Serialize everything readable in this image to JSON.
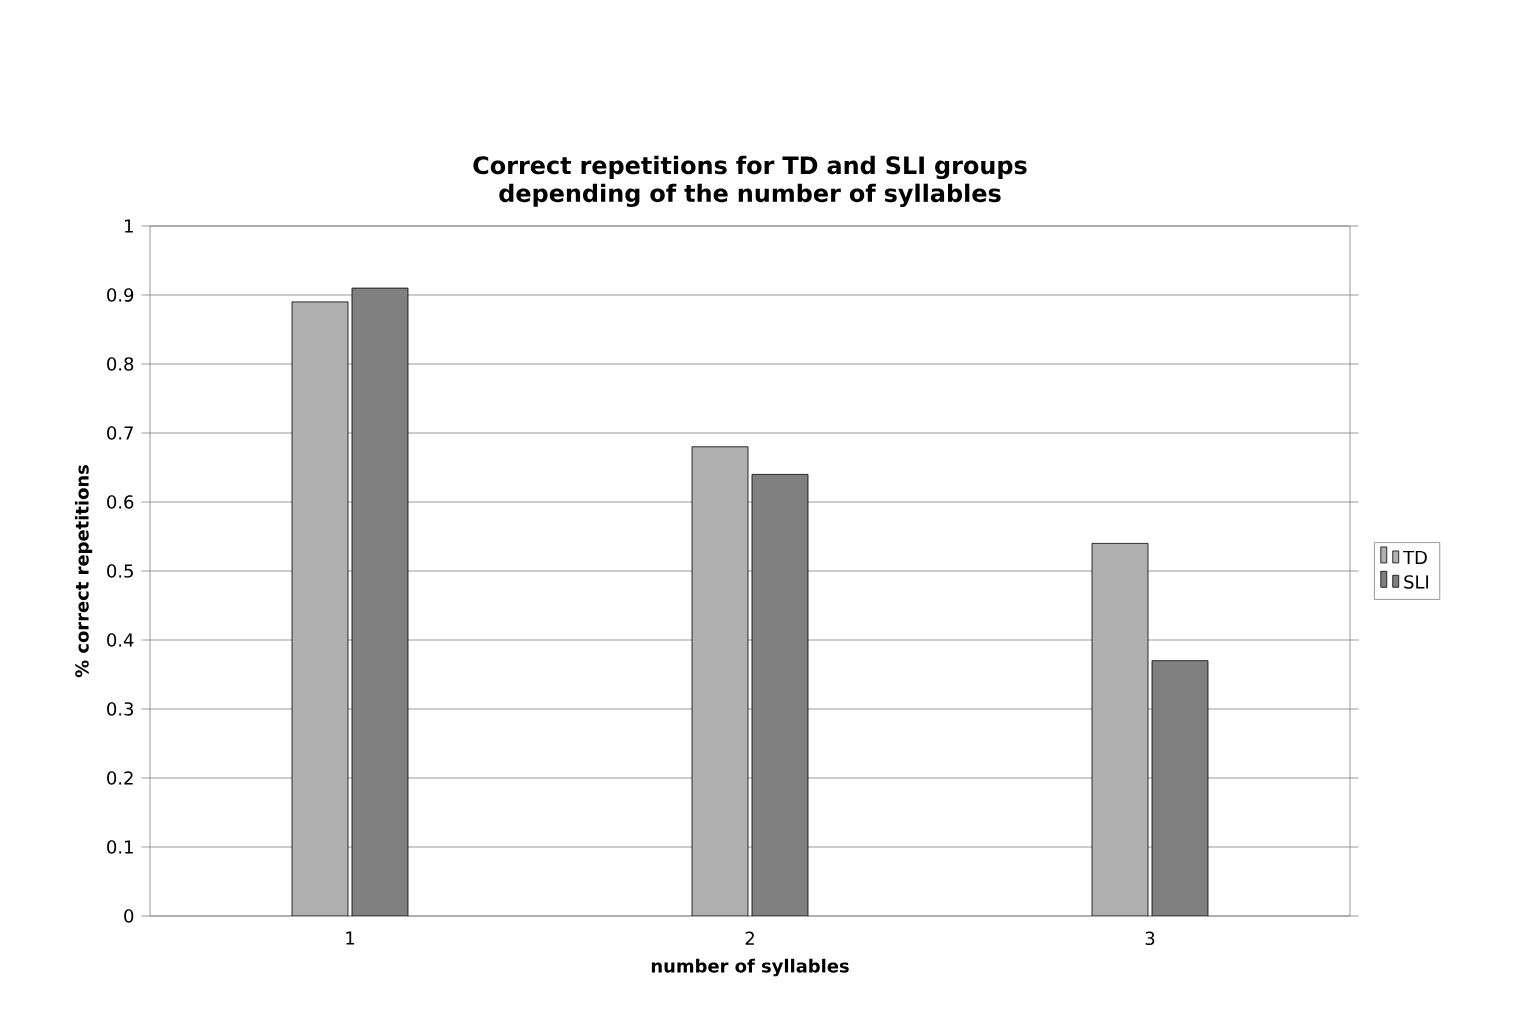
{
  "chart_data": {
    "type": "bar",
    "title": "Correct repetitions for TD and SLI groups depending of the number of syllables",
    "xlabel": "number of syllables",
    "ylabel": "% correct repetitions",
    "categories": [
      "1",
      "2",
      "3"
    ],
    "series": [
      {
        "name": "TD",
        "color": "#b0b0b0",
        "values": [
          0.89,
          0.68,
          0.54
        ]
      },
      {
        "name": "SLI",
        "color": "#808080",
        "values": [
          0.91,
          0.64,
          0.37
        ]
      }
    ],
    "ylim": [
      0,
      1
    ],
    "yticks": [
      0,
      0.1,
      0.2,
      0.3,
      0.4,
      0.5,
      0.6,
      0.7,
      0.8,
      0.9,
      1
    ],
    "grid": "y",
    "legend": "right"
  }
}
